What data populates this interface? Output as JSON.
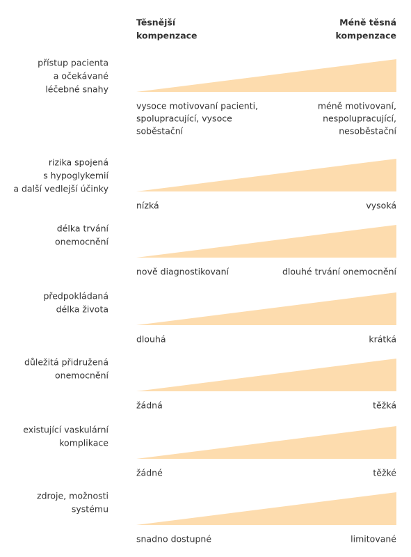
{
  "header": {
    "left": [
      "Těsnější",
      "kompenzace"
    ],
    "right": [
      "Méně těsná",
      "kompenzace"
    ]
  },
  "rows": [
    {
      "label": [
        "přístup pacienta",
        "a očekávané",
        "léčebné snahy"
      ],
      "left": [
        "vysoce motivovaní pacienti,",
        "spolupracující, vysoce",
        "soběstační"
      ],
      "right": [
        "méně motivovaní,",
        "nespolupracující,",
        "nesoběstační"
      ]
    },
    {
      "label": [
        "rizika spojená",
        "s hypoglykemií",
        "a další vedlejší účinky"
      ],
      "left": [
        "nízká"
      ],
      "right": [
        "vysoká"
      ]
    },
    {
      "label": [
        "délka trvání",
        "onemocnění"
      ],
      "left": [
        "nově diagnostikovaní"
      ],
      "right": [
        "dlouhé trvání onemocnění"
      ]
    },
    {
      "label": [
        "předpokládaná",
        "délka života"
      ],
      "left": [
        "dlouhá"
      ],
      "right": [
        "krátká"
      ]
    },
    {
      "label": [
        "důležitá přidružená",
        "onemocnění"
      ],
      "left": [
        "žádná"
      ],
      "right": [
        "těžká"
      ]
    },
    {
      "label": [
        "existující vaskulární",
        "komplikace"
      ],
      "left": [
        "žádné"
      ],
      "right": [
        "těžké"
      ]
    },
    {
      "label": [
        "zdroje, možnosti",
        "systému"
      ],
      "left": [
        "snadno dostupné"
      ],
      "right": [
        "limitované"
      ]
    }
  ]
}
